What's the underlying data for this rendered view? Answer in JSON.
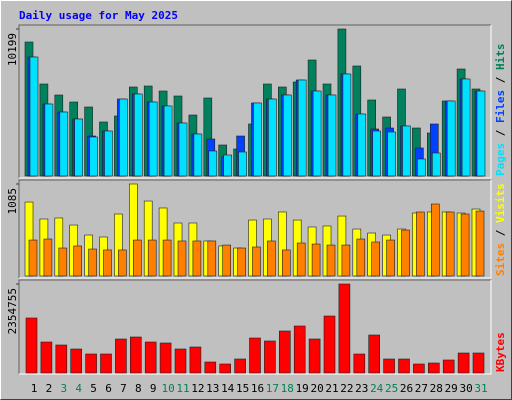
{
  "chart_data": {
    "type": "bar",
    "title": "Daily usage for May 2025",
    "categories": [
      "1",
      "2",
      "3",
      "4",
      "5",
      "6",
      "7",
      "8",
      "9",
      "10",
      "11",
      "12",
      "13",
      "14",
      "15",
      "16",
      "17",
      "18",
      "19",
      "20",
      "21",
      "22",
      "23",
      "24",
      "25",
      "26",
      "27",
      "28",
      "29",
      "30",
      "31"
    ],
    "category_colors": [
      "#000000",
      "#000000",
      "#00805c",
      "#00805c",
      "#000000",
      "#000000",
      "#000000",
      "#000000",
      "#000000",
      "#00805c",
      "#00805c",
      "#000000",
      "#000000",
      "#000000",
      "#000000",
      "#000000",
      "#00805c",
      "#00805c",
      "#000000",
      "#000000",
      "#000000",
      "#000000",
      "#000000",
      "#00805c",
      "#00805c",
      "#000000",
      "#000000",
      "#000000",
      "#000000",
      "#000000",
      "#00805c"
    ],
    "legend_separator": " / ",
    "panels": [
      {
        "ylim": [
          0,
          10199
        ],
        "yticks": [
          10199
        ],
        "series": [
          {
            "name": "Hits",
            "color": "#00805c",
            "values": [
              9297,
              6383,
              5620,
              5134,
              4787,
              3747,
              4163,
              6175,
              6244,
              5897,
              5550,
              4232,
              5412,
              2151,
              1873,
              3608,
              6383,
              6175,
              6522,
              8048,
              6383,
              10199,
              7632,
              5273,
              4094,
              6036,
              3330,
              2983,
              5204,
              7424,
              6036
            ]
          },
          {
            "name": "Files",
            "color": "#0040ff",
            "values": [
              8256,
              4995,
              4440,
              3955,
              2775,
              3122,
              5342,
              5689,
              5134,
              4857,
              3677,
              2914,
              2567,
              1318,
              2775,
              5065,
              5342,
              5620,
              6660,
              5897,
              5620,
              7077,
              4302,
              3261,
              3330,
              3469,
              1943,
              3608,
              5204,
              6730,
              5897
            ]
          },
          {
            "name": "Pages",
            "color": "#00e0ff",
            "values": [
              8256,
              4995,
              4440,
              3955,
              2706,
              3122,
              5342,
              5689,
              5134,
              4857,
              3677,
              2914,
              1735,
              1457,
              1665,
              5065,
              5342,
              5620,
              6660,
              5897,
              5620,
              7077,
              4302,
              3122,
              3053,
              3469,
              1179,
              1596,
              5204,
              6730,
              5897
            ]
          }
        ]
      },
      {
        "ylim": [
          0,
          1085
        ],
        "yticks": [
          1085
        ],
        "series": [
          {
            "name": "Visits",
            "color": "#ffff00",
            "values": [
              872,
              672,
              684,
              601,
              483,
              460,
              731,
              1085,
              884,
              802,
              625,
              625,
              413,
              354,
              330,
              660,
              672,
              755,
              660,
              578,
              590,
              707,
              554,
              507,
              483,
              554,
              743,
              755,
              755,
              743,
              790
            ]
          },
          {
            "name": "Sites",
            "color": "#ff8000",
            "values": [
              424,
              436,
              330,
              354,
              318,
              307,
              307,
              424,
              424,
              424,
              413,
              413,
              413,
              365,
              330,
              342,
              413,
              307,
              389,
              377,
              365,
              365,
              436,
              401,
              424,
              542,
              755,
              849,
              755,
              731,
              766
            ]
          }
        ]
      },
      {
        "ylim": [
          0,
          2354755
        ],
        "yticks": [
          2354755
        ],
        "series": [
          {
            "name": "KBytes",
            "color": "#ff0000",
            "values": [
              1455190,
              820198,
              740824,
              634992,
              502702,
              502702,
              899572,
              952488,
              820198,
              793740,
              634992,
              687908,
              291038,
              238122,
              370412,
              926030,
              846656,
              1111236,
              1243526,
              899572,
              1508106,
              2354755,
              502702,
              1005404,
              370412,
              370412,
              238122,
              264580,
              343954,
              529160,
              529160
            ]
          }
        ]
      }
    ]
  }
}
